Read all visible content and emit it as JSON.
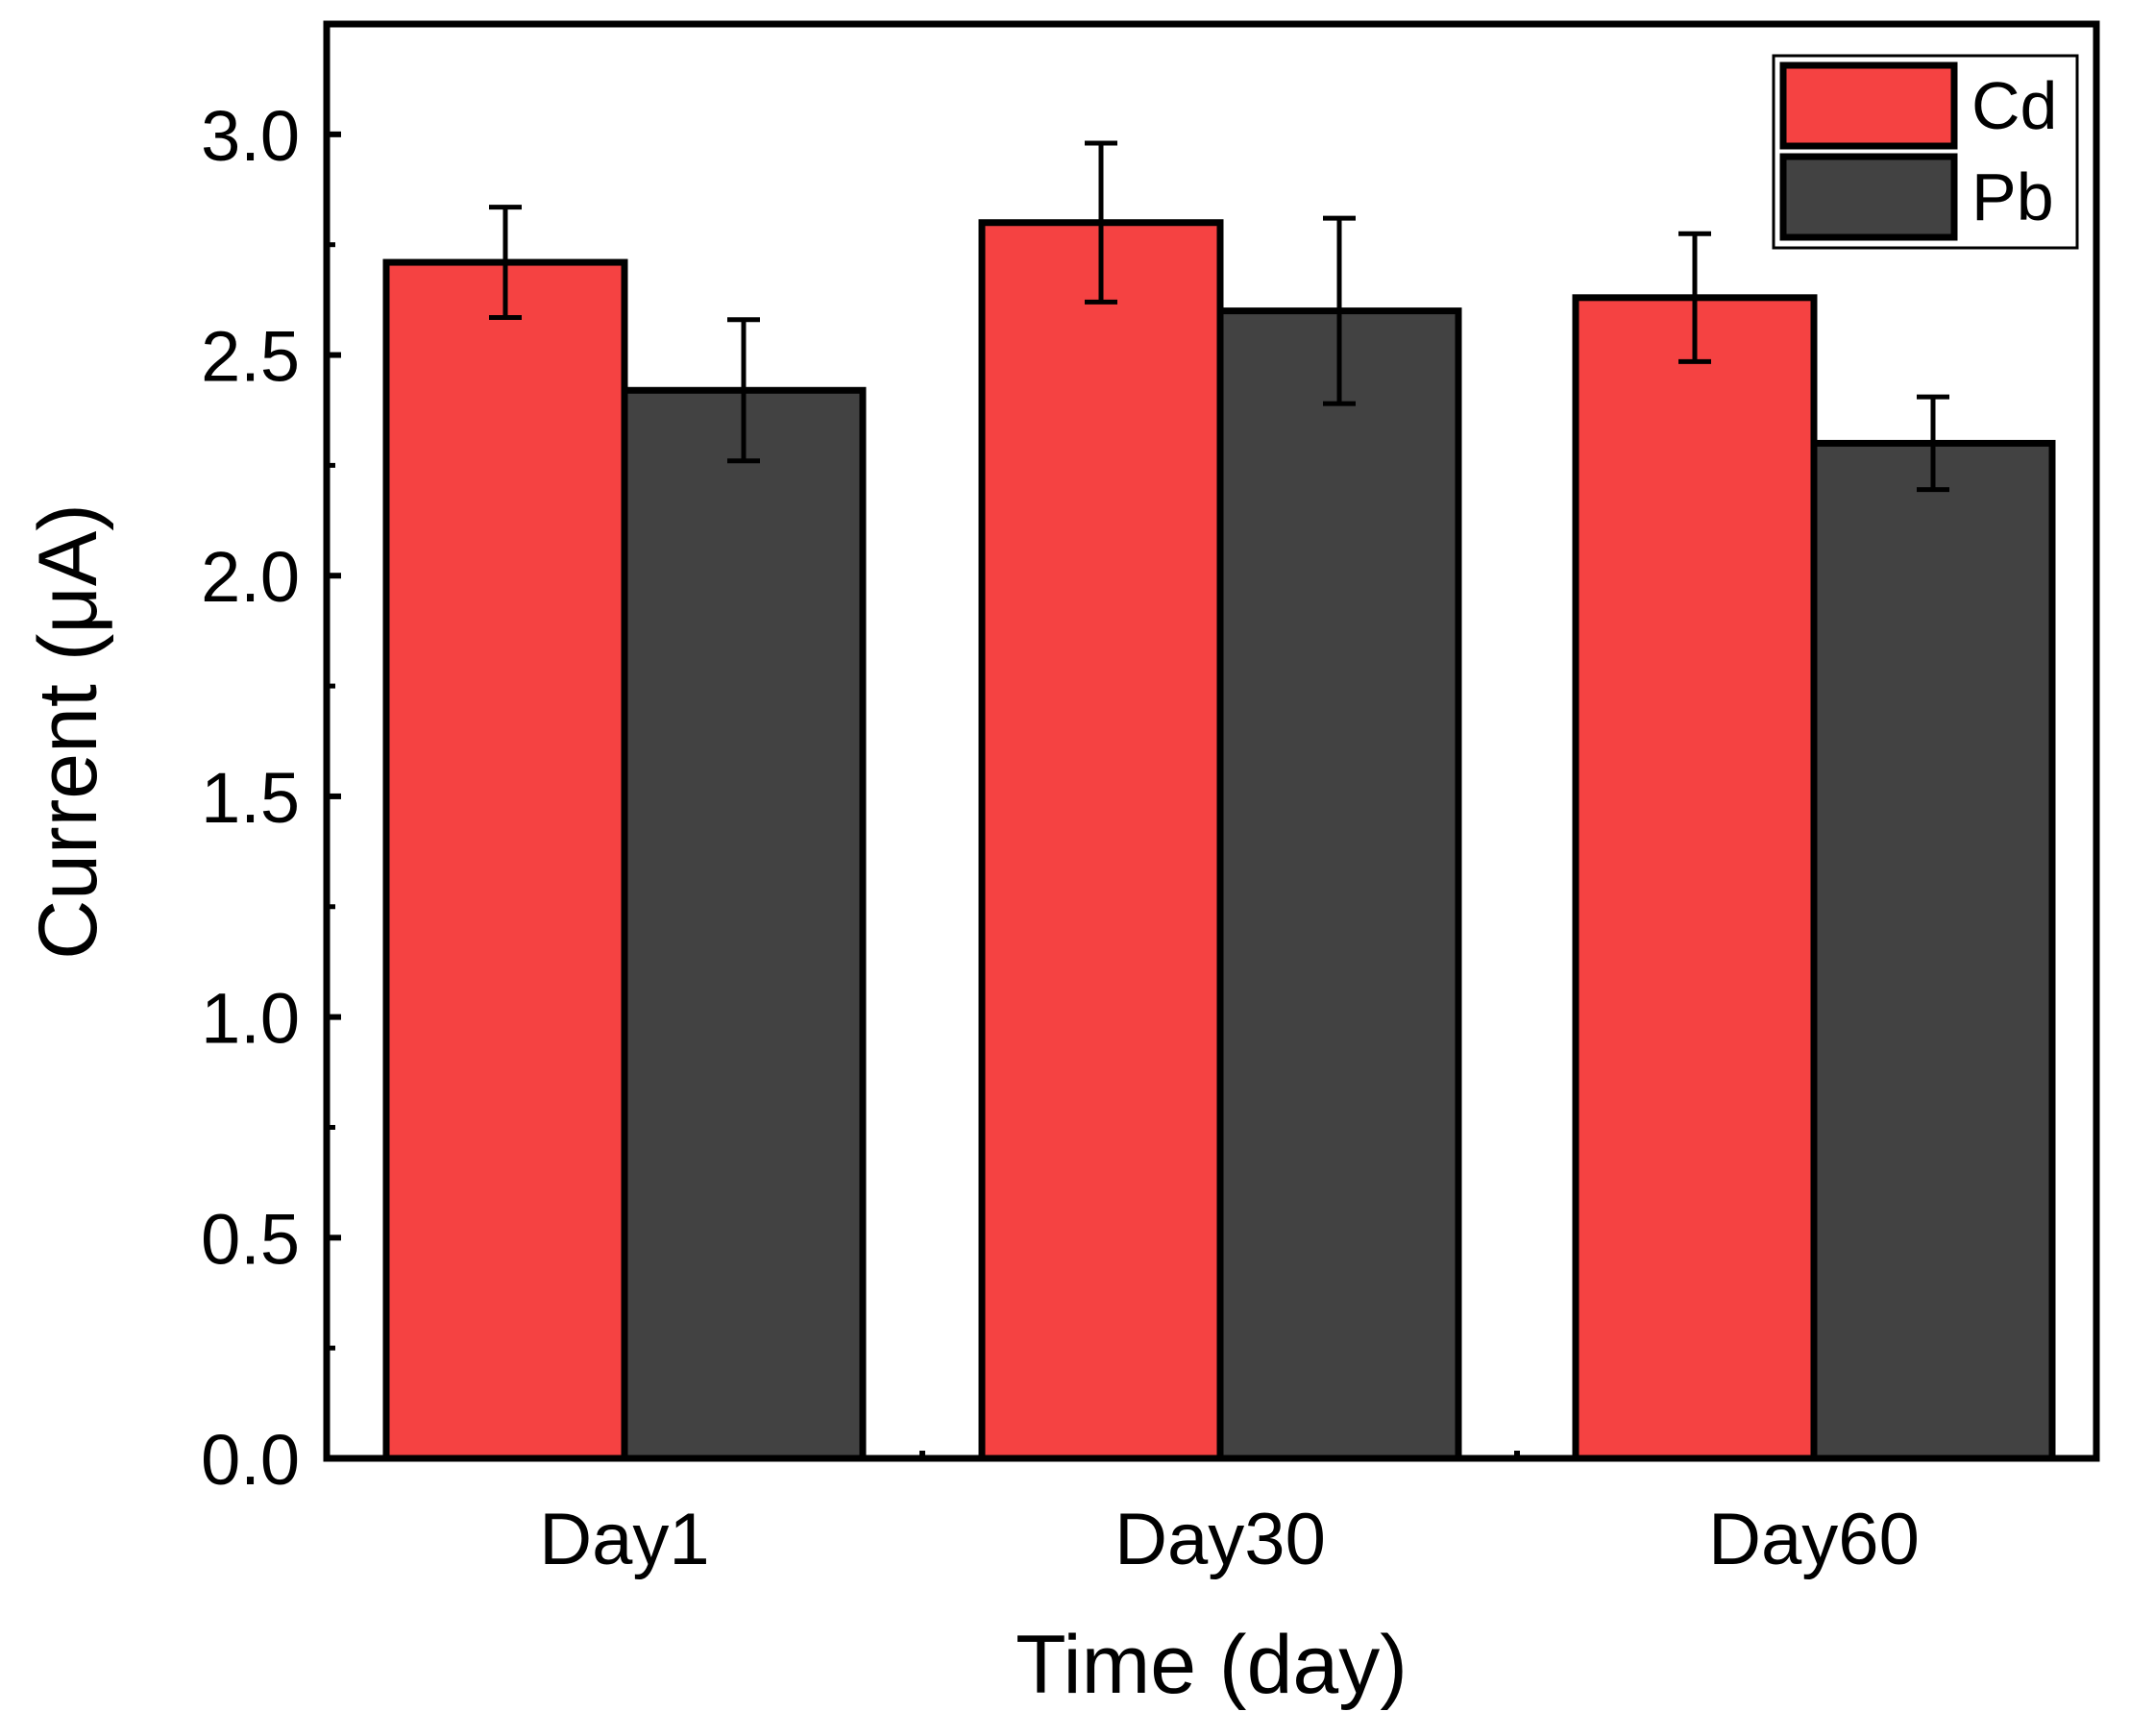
{
  "chart_data": {
    "type": "bar",
    "title": "",
    "xlabel": "Time (day)",
    "ylabel": "Current (μA)",
    "categories": [
      "Day1",
      "Day30",
      "Day60"
    ],
    "series": [
      {
        "name": "Cd",
        "color": "#f54242",
        "values": [
          2.71,
          2.8,
          2.63
        ],
        "errors": [
          0.125,
          0.18,
          0.145
        ]
      },
      {
        "name": "Pb",
        "color": "#424242",
        "values": [
          2.42,
          2.6,
          2.3
        ],
        "errors": [
          0.16,
          0.21,
          0.105
        ]
      }
    ],
    "ylim": [
      0,
      3.25
    ],
    "yticks": [
      "0.0",
      "0.5",
      "1.0",
      "1.5",
      "2.0",
      "2.5",
      "3.0"
    ],
    "grid": false,
    "legend": "top-right"
  }
}
